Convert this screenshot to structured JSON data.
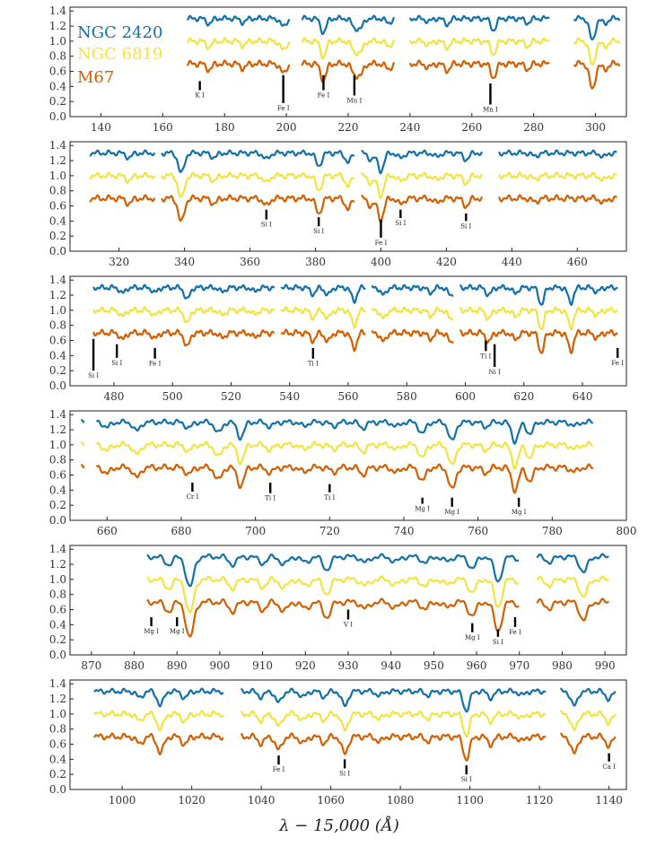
{
  "chart_data": {
    "type": "line",
    "title": "",
    "xlabel": "λ − 15,000 (Å)",
    "ylabel": "",
    "legend": [
      {
        "name": "NGC 2420",
        "color": "#1170aa"
      },
      {
        "name": "NGC 6819",
        "color": "#f0e442"
      },
      {
        "name": "M67",
        "color": "#d55e00"
      }
    ],
    "series_offsets": [
      1.3,
      1.0,
      0.7
    ],
    "panels": [
      {
        "xlim": [
          130,
          310
        ],
        "ylim": [
          0,
          1.45
        ],
        "data_range": [
          168,
          308
        ],
        "gaps": [
          [
            201,
            205
          ],
          [
            235,
            240
          ],
          [
            285,
            293
          ]
        ],
        "yticks": [
          "0.0",
          "0.2",
          "0.4",
          "0.6",
          "0.8",
          "1.0",
          "1.2",
          "1.4"
        ],
        "xticks": [
          140,
          160,
          180,
          200,
          220,
          240,
          260,
          280,
          300
        ],
        "absorptions": [
          [
            175,
            0.08
          ],
          [
            186,
            0.06
          ],
          [
            199,
            0.13
          ],
          [
            212,
            0.22
          ],
          [
            222,
            0.14
          ],
          [
            224,
            0.15
          ],
          [
            233,
            0.07
          ],
          [
            246,
            0.05
          ],
          [
            252,
            0.09
          ],
          [
            267,
            0.18
          ],
          [
            278,
            0.07
          ],
          [
            299,
            0.35
          ],
          [
            303,
            0.08
          ]
        ],
        "lines": [
          {
            "x": 172,
            "label": "K I",
            "top": 0.47,
            "bottom": 0.35
          },
          {
            "x": 199,
            "label": "Fe I",
            "top": 0.55,
            "bottom": 0.18
          },
          {
            "x": 212,
            "label": "Fe I",
            "top": 0.55,
            "bottom": 0.35
          },
          {
            "x": 222,
            "label": "Mn I",
            "top": 0.55,
            "bottom": 0.28
          },
          {
            "x": 266,
            "label": "Mn I",
            "top": 0.44,
            "bottom": 0.16
          }
        ]
      },
      {
        "xlim": [
          305,
          475
        ],
        "ylim": [
          0,
          1.45
        ],
        "data_range": [
          311,
          472
        ],
        "gaps": [
          [
            331,
            333
          ],
          [
            392,
            394
          ],
          [
            431,
            436
          ]
        ],
        "yticks": [
          "0.0",
          "0.2",
          "0.4",
          "0.6",
          "0.8",
          "1.0",
          "1.2",
          "1.4"
        ],
        "xticks": [
          320,
          340,
          360,
          380,
          400,
          420,
          440,
          460
        ],
        "absorptions": [
          [
            323,
            0.07
          ],
          [
            339,
            0.32
          ],
          [
            349,
            0.07
          ],
          [
            365,
            0.1
          ],
          [
            381,
            0.2
          ],
          [
            390,
            0.14
          ],
          [
            397,
            0.1
          ],
          [
            400,
            0.28
          ],
          [
            406,
            0.08
          ],
          [
            417,
            0.06
          ],
          [
            426,
            0.1
          ],
          [
            447,
            0.05
          ],
          [
            468,
            0.06
          ]
        ],
        "lines": [
          {
            "x": 365,
            "label": "Si I",
            "top": 0.55,
            "bottom": 0.42
          },
          {
            "x": 381,
            "label": "Si I",
            "top": 0.45,
            "bottom": 0.33
          },
          {
            "x": 400,
            "label": "Fe I",
            "top": 0.42,
            "bottom": 0.18
          },
          {
            "x": 406,
            "label": "Si I",
            "top": 0.55,
            "bottom": 0.44
          },
          {
            "x": 426,
            "label": "Si I",
            "top": 0.5,
            "bottom": 0.4
          }
        ]
      },
      {
        "xlim": [
          465,
          655
        ],
        "ylim": [
          0,
          1.45
        ],
        "data_range": [
          473,
          652
        ],
        "gaps": [
          [
            535,
            537
          ],
          [
            566,
            568
          ],
          [
            596,
            598
          ]
        ],
        "yticks": [
          "0.0",
          "0.2",
          "0.4",
          "0.6",
          "0.8",
          "1.0",
          "1.2",
          "1.4"
        ],
        "xticks": [
          480,
          500,
          520,
          540,
          560,
          580,
          600,
          620,
          640
        ],
        "absorptions": [
          [
            483,
            0.09
          ],
          [
            494,
            0.08
          ],
          [
            505,
            0.19
          ],
          [
            517,
            0.07
          ],
          [
            528,
            0.06
          ],
          [
            548,
            0.1
          ],
          [
            553,
            0.12
          ],
          [
            562,
            0.21
          ],
          [
            572,
            0.12
          ],
          [
            588,
            0.08
          ],
          [
            595,
            0.13
          ],
          [
            608,
            0.12
          ],
          [
            617,
            0.09
          ],
          [
            626,
            0.26
          ],
          [
            636,
            0.24
          ],
          [
            645,
            0.07
          ]
        ],
        "lines": [
          {
            "x": 473,
            "label": "Si I",
            "top": 0.62,
            "bottom": 0.2
          },
          {
            "x": 481,
            "label": "Si I",
            "top": 0.55,
            "bottom": 0.37
          },
          {
            "x": 494,
            "label": "Fe I",
            "top": 0.5,
            "bottom": 0.36
          },
          {
            "x": 548,
            "label": "Ti I",
            "top": 0.5,
            "bottom": 0.36
          },
          {
            "x": 607,
            "label": "Ti I",
            "top": 0.6,
            "bottom": 0.46
          },
          {
            "x": 610,
            "label": "Ni I",
            "top": 0.55,
            "bottom": 0.25
          },
          {
            "x": 652,
            "label": "Fe I",
            "top": 0.5,
            "bottom": 0.37
          }
        ]
      },
      {
        "xlim": [
          650,
          800
        ],
        "ylim": [
          0,
          1.45
        ],
        "data_range": [
          653,
          791
        ],
        "gaps": [
          [
            654,
            657
          ]
        ],
        "yticks": [
          "0.0",
          "0.2",
          "0.4",
          "0.6",
          "0.8",
          "1.0",
          "1.2",
          "1.4"
        ],
        "xticks": [
          660,
          680,
          700,
          720,
          740,
          760,
          780,
          800
        ],
        "absorptions": [
          [
            660,
            0.08
          ],
          [
            668,
            0.14
          ],
          [
            682,
            0.09
          ],
          [
            690,
            0.17
          ],
          [
            696,
            0.24
          ],
          [
            704,
            0.07
          ],
          [
            713,
            0.06
          ],
          [
            721,
            0.06
          ],
          [
            729,
            0.09
          ],
          [
            738,
            0.07
          ],
          [
            745,
            0.18
          ],
          [
            753,
            0.3
          ],
          [
            762,
            0.07
          ],
          [
            770,
            0.3
          ],
          [
            774,
            0.18
          ],
          [
            786,
            0.06
          ]
        ],
        "lines": [
          {
            "x": 683,
            "label": "Cr I",
            "top": 0.5,
            "bottom": 0.38
          },
          {
            "x": 704,
            "label": "Ti I",
            "top": 0.5,
            "bottom": 0.36
          },
          {
            "x": 720,
            "label": "Ti I",
            "top": 0.48,
            "bottom": 0.37
          },
          {
            "x": 745,
            "label": "Mg I",
            "top": 0.3,
            "bottom": 0.22
          },
          {
            "x": 753,
            "label": "Mg I",
            "top": 0.3,
            "bottom": 0.18
          },
          {
            "x": 771,
            "label": "Mg I",
            "top": 0.3,
            "bottom": 0.18
          }
        ]
      },
      {
        "xlim": [
          865,
          995
        ],
        "ylim": [
          0,
          1.45
        ],
        "data_range": [
          883,
          991
        ],
        "gaps": [
          [
            970,
            974
          ]
        ],
        "yticks": [
          "0.0",
          "0.2",
          "0.4",
          "0.6",
          "0.8",
          "1.0",
          "1.2",
          "1.4"
        ],
        "xticks": [
          870,
          880,
          890,
          900,
          910,
          920,
          930,
          940,
          950,
          960,
          970,
          980,
          990
        ],
        "absorptions": [
          [
            888,
            0.12
          ],
          [
            893,
            0.48
          ],
          [
            903,
            0.12
          ],
          [
            910,
            0.1
          ],
          [
            915,
            0.12
          ],
          [
            920,
            0.09
          ],
          [
            925,
            0.2
          ],
          [
            934,
            0.09
          ],
          [
            941,
            0.08
          ],
          [
            948,
            0.09
          ],
          [
            953,
            0.07
          ],
          [
            959,
            0.18
          ],
          [
            965,
            0.38
          ],
          [
            971,
            0.12
          ],
          [
            977,
            0.08
          ],
          [
            985,
            0.24
          ]
        ],
        "lines": [
          {
            "x": 884,
            "label": "Mg I",
            "top": 0.5,
            "bottom": 0.38
          },
          {
            "x": 890,
            "label": "Mg I",
            "top": 0.5,
            "bottom": 0.38
          },
          {
            "x": 930,
            "label": "V I",
            "top": 0.6,
            "bottom": 0.47
          },
          {
            "x": 959,
            "label": "Mg I",
            "top": 0.42,
            "bottom": 0.3
          },
          {
            "x": 965,
            "label": "Si I",
            "top": 0.34,
            "bottom": 0.24
          },
          {
            "x": 969,
            "label": "Fe I",
            "top": 0.5,
            "bottom": 0.37
          }
        ]
      },
      {
        "xlim": [
          985,
          1145
        ],
        "ylim": [
          0,
          1.45
        ],
        "data_range": [
          992,
          1142
        ],
        "gaps": [
          [
            1029,
            1034
          ],
          [
            1122,
            1126
          ]
        ],
        "yticks": [
          "0.0",
          "0.2",
          "0.4",
          "0.6",
          "0.8",
          "1.0",
          "1.2",
          "1.4"
        ],
        "xticks": [
          1000,
          1020,
          1040,
          1060,
          1080,
          1100,
          1120,
          1140
        ],
        "absorptions": [
          [
            1005,
            0.1
          ],
          [
            1011,
            0.22
          ],
          [
            1018,
            0.1
          ],
          [
            1040,
            0.09
          ],
          [
            1045,
            0.18
          ],
          [
            1052,
            0.09
          ],
          [
            1058,
            0.08
          ],
          [
            1064,
            0.23
          ],
          [
            1074,
            0.07
          ],
          [
            1088,
            0.06
          ],
          [
            1099,
            0.3
          ],
          [
            1106,
            0.1
          ],
          [
            1115,
            0.06
          ],
          [
            1130,
            0.23
          ],
          [
            1140,
            0.12
          ]
        ],
        "lines": [
          {
            "x": 1045,
            "label": "Fe I",
            "top": 0.45,
            "bottom": 0.33
          },
          {
            "x": 1064,
            "label": "Si I",
            "top": 0.4,
            "bottom": 0.28
          },
          {
            "x": 1099,
            "label": "Si I",
            "top": 0.32,
            "bottom": 0.2
          },
          {
            "x": 1140,
            "label": "Ca I",
            "top": 0.48,
            "bottom": 0.37
          }
        ]
      }
    ]
  }
}
